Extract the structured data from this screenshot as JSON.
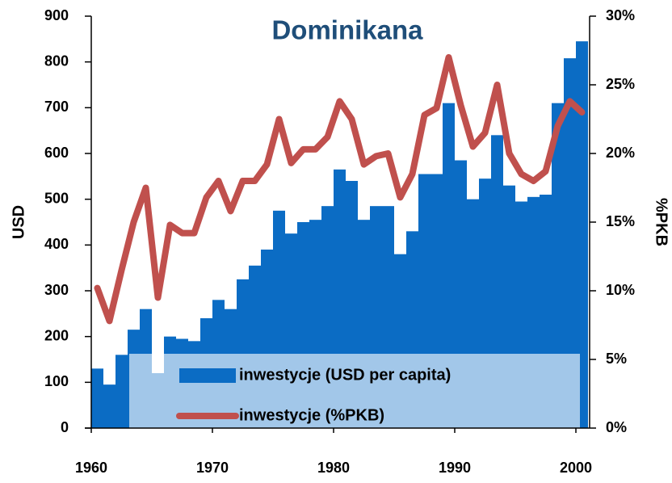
{
  "chart_data": {
    "type": "bar",
    "title": "Dominikana",
    "ylabel": "USD",
    "y2label": "%PKB",
    "x": [
      1960,
      1961,
      1962,
      1963,
      1964,
      1965,
      1966,
      1967,
      1968,
      1969,
      1970,
      1971,
      1972,
      1973,
      1974,
      1975,
      1976,
      1977,
      1978,
      1979,
      1980,
      1981,
      1982,
      1983,
      1984,
      1985,
      1986,
      1987,
      1988,
      1989,
      1990,
      1991,
      1992,
      1993,
      1994,
      1995,
      1996,
      1997,
      1998,
      1999,
      2000
    ],
    "xlim": [
      1960,
      2001
    ],
    "xticks": [
      1960,
      1970,
      1980,
      1990,
      2000
    ],
    "ylim": [
      0,
      900
    ],
    "yticks": [
      0,
      100,
      200,
      300,
      400,
      500,
      600,
      700,
      800,
      900
    ],
    "y2lim": [
      0,
      30
    ],
    "y2ticks": [
      {
        "value": 0,
        "label": "0%"
      },
      {
        "value": 5,
        "label": "5%"
      },
      {
        "value": 10,
        "label": "10%"
      },
      {
        "value": 15,
        "label": "15%"
      },
      {
        "value": 20,
        "label": "20%"
      },
      {
        "value": 25,
        "label": "25%"
      },
      {
        "value": 30,
        "label": "30%"
      }
    ],
    "legend": "bottom",
    "series": [
      {
        "name": "inwestycje (USD per capita)",
        "type": "bar",
        "color": "#0b6cc4",
        "values": [
          130,
          95,
          160,
          215,
          260,
          120,
          200,
          195,
          190,
          240,
          280,
          260,
          325,
          355,
          390,
          475,
          425,
          450,
          455,
          485,
          565,
          540,
          455,
          485,
          485,
          380,
          430,
          555,
          555,
          710,
          585,
          500,
          545,
          640,
          530,
          495,
          505,
          510,
          710,
          808,
          845
        ]
      },
      {
        "name": "inwestycje (%PKB)",
        "type": "line",
        "axis": "y2",
        "color": "#c0504d",
        "values": [
          10.2,
          7.8,
          11.5,
          15,
          17.5,
          9.5,
          14.8,
          14.2,
          14.2,
          16.8,
          18,
          15.8,
          18,
          18,
          19.2,
          22.5,
          19.3,
          20.3,
          20.3,
          21.2,
          23.8,
          22.5,
          19.2,
          19.8,
          20,
          16.8,
          18.5,
          22.8,
          23.3,
          27,
          23.5,
          20.5,
          21.5,
          25,
          20,
          18.5,
          18,
          18.7,
          22,
          23.8,
          23
        ]
      }
    ]
  }
}
